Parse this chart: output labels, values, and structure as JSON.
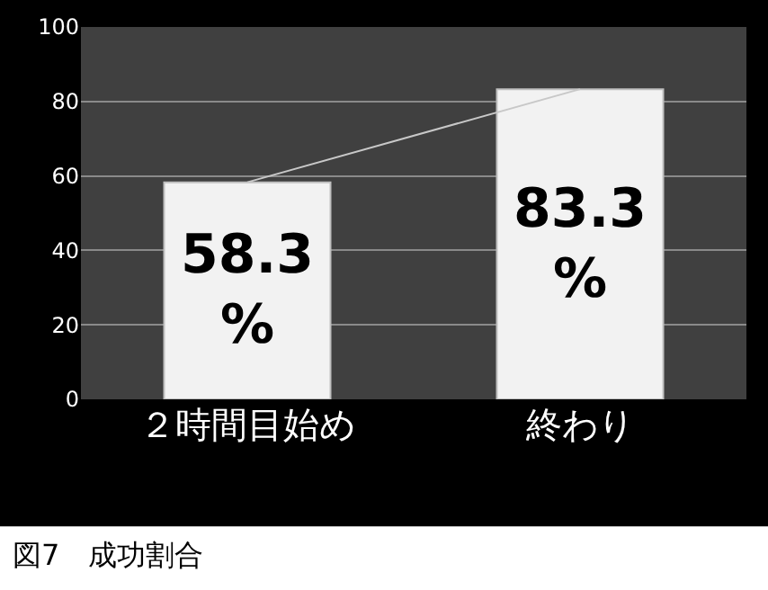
{
  "chart_data": {
    "type": "bar",
    "categories": [
      "２時間目始め",
      "終わり"
    ],
    "series": [
      {
        "type": "line",
        "color": "#c8c8c8",
        "values": [
          58.3,
          83.3
        ]
      },
      {
        "color": "#f2f2f2",
        "values": [
          58.3,
          83.3
        ],
        "value_labels": [
          "58.3 %",
          "83.3 %"
        ]
      }
    ],
    "ylim": [
      0,
      100
    ],
    "yticks": [
      0,
      20,
      40,
      60,
      80,
      100
    ],
    "grid": "y",
    "annotations": [
      "図7　成功割合"
    ]
  }
}
